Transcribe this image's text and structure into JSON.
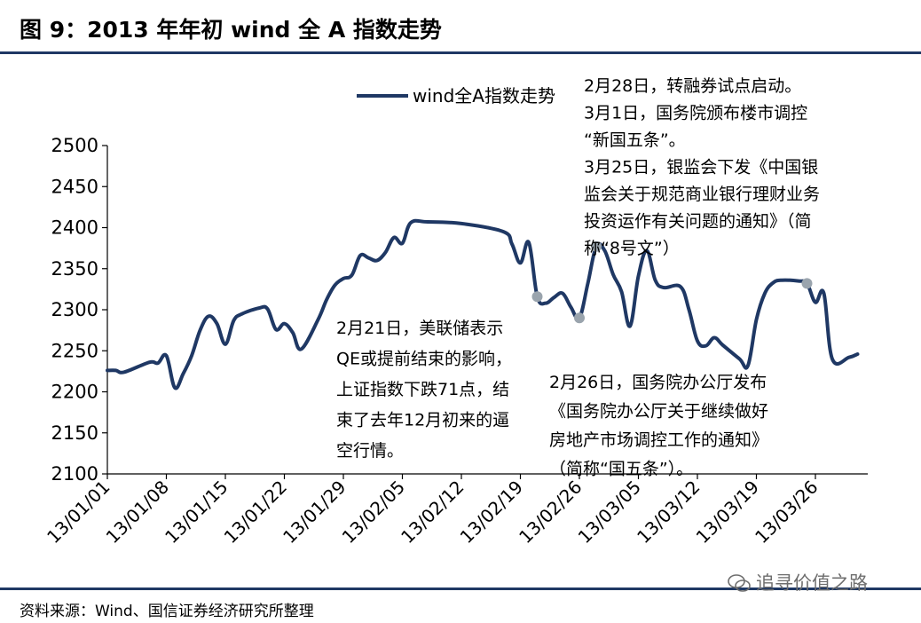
{
  "header": {
    "title": "图 9：2013 年年初 wind 全 A 指数走势"
  },
  "footer": {
    "source": "资料来源：Wind、国信证券经济研究所整理",
    "watermark": "追寻价值之路"
  },
  "chart_data": {
    "type": "line",
    "title": "",
    "xlabel": "",
    "ylabel": "",
    "ylim": [
      2100,
      2500
    ],
    "yticks": [
      2100,
      2150,
      2200,
      2250,
      2300,
      2350,
      2400,
      2450,
      2500
    ],
    "xticks": [
      "13/01/01",
      "13/01/08",
      "13/01/15",
      "13/01/22",
      "13/01/29",
      "13/02/05",
      "13/02/12",
      "13/02/19",
      "13/02/26",
      "13/03/05",
      "13/03/12",
      "13/03/19",
      "13/03/26"
    ],
    "grid": false,
    "legend": {
      "placement": "top-left"
    },
    "series": [
      {
        "name": "wind全A指数走势",
        "color": "#1f3864",
        "points": [
          [
            "13/01/01",
            2226
          ],
          [
            "13/01/02",
            2226
          ],
          [
            "13/01/03",
            2224
          ],
          [
            "13/01/06",
            2236
          ],
          [
            "13/01/07",
            2235
          ],
          [
            "13/01/08",
            2244
          ],
          [
            "13/01/09",
            2205
          ],
          [
            "13/01/10",
            2222
          ],
          [
            "13/01/11",
            2244
          ],
          [
            "13/01/12",
            2275
          ],
          [
            "13/01/13",
            2292
          ],
          [
            "13/01/14",
            2283
          ],
          [
            "13/01/15",
            2258
          ],
          [
            "13/01/16",
            2287
          ],
          [
            "13/01/17",
            2295
          ],
          [
            "13/01/19",
            2302
          ],
          [
            "13/01/20",
            2301
          ],
          [
            "13/01/21",
            2276
          ],
          [
            "13/01/22",
            2283
          ],
          [
            "13/01/23",
            2272
          ],
          [
            "13/01/24",
            2252
          ],
          [
            "13/01/26",
            2288
          ],
          [
            "13/01/27",
            2312
          ],
          [
            "13/01/28",
            2330
          ],
          [
            "13/01/29",
            2338
          ],
          [
            "13/01/30",
            2342
          ],
          [
            "13/01/31",
            2366
          ],
          [
            "13/02/01",
            2363
          ],
          [
            "13/02/02",
            2360
          ],
          [
            "13/02/03",
            2370
          ],
          [
            "13/02/04",
            2388
          ],
          [
            "13/02/05",
            2381
          ],
          [
            "13/02/06",
            2406
          ],
          [
            "13/02/08",
            2407
          ],
          [
            "13/02/12",
            2405
          ],
          [
            "13/02/17",
            2395
          ],
          [
            "13/02/18",
            2380
          ],
          [
            "13/02/19",
            2357
          ],
          [
            "13/02/20",
            2382
          ],
          [
            "13/02/21",
            2316
          ],
          [
            "13/02/22",
            2308
          ],
          [
            "13/02/23",
            2315
          ],
          [
            "13/02/24",
            2320
          ],
          [
            "13/02/25",
            2303
          ],
          [
            "13/02/26",
            2290
          ],
          [
            "13/02/27",
            2332
          ],
          [
            "13/02/28",
            2377
          ],
          [
            "13/03/01",
            2372
          ],
          [
            "13/03/02",
            2343
          ],
          [
            "13/03/03",
            2322
          ],
          [
            "13/03/04",
            2280
          ],
          [
            "13/03/05",
            2341
          ],
          [
            "13/03/06",
            2372
          ],
          [
            "13/03/07",
            2336
          ],
          [
            "13/03/08",
            2327
          ],
          [
            "13/03/10",
            2328
          ],
          [
            "13/03/11",
            2300
          ],
          [
            "13/03/12",
            2262
          ],
          [
            "13/03/13",
            2256
          ],
          [
            "13/03/14",
            2266
          ],
          [
            "13/03/15",
            2257
          ],
          [
            "13/03/17",
            2240
          ],
          [
            "13/03/18",
            2232
          ],
          [
            "13/03/19",
            2288
          ],
          [
            "13/03/20",
            2320
          ],
          [
            "13/03/21",
            2333
          ],
          [
            "13/03/22",
            2336
          ],
          [
            "13/03/24",
            2335
          ],
          [
            "13/03/25",
            2332
          ],
          [
            "13/03/26",
            2309
          ],
          [
            "13/03/27",
            2320
          ],
          [
            "13/03/28",
            2240
          ],
          [
            "13/03/30",
            2242
          ],
          [
            "13/03/31",
            2246
          ]
        ]
      }
    ],
    "markers": [
      {
        "x": "13/02/21",
        "y": 2316
      },
      {
        "x": "13/02/26",
        "y": 2290
      },
      {
        "x": "13/02/28",
        "y": 2377
      },
      {
        "x": "13/03/25",
        "y": 2332
      }
    ],
    "marker_color": "#9aa4ad",
    "annotations": [
      {
        "lines": [
          "2月21日，美联储表示",
          "QE或提前结束的影响，",
          "上证指数下跌71点，结",
          "束了去年12月初来的逼",
          "空行情。"
        ]
      },
      {
        "lines": [
          "2月26日，国务院办公厅发布",
          "《国务院办公厅关于继续做好",
          "房地产市场调控工作的通知》",
          "（简称“国五条”）。"
        ]
      },
      {
        "lines": [
          "2月28日，转融券试点启动。",
          "3月1日，国务院颁布楼市调控",
          "“新国五条”。",
          "3月25日，银监会下发《中国银",
          "监会关于规范商业银行理财业务",
          "投资运作有关问题的通知》（简",
          "称“8号文”）"
        ]
      }
    ]
  }
}
